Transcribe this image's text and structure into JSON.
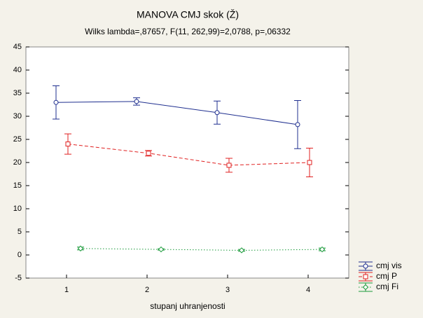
{
  "chart_data": {
    "type": "line",
    "title": "MANOVA CMJ skok (Ž)",
    "subtitle": "Wilks lambda=,87657, F(11, 262,99)=2,0788, p=,06332",
    "x_label": "stupanj uhranjenosti",
    "categories": [
      "1",
      "2",
      "3",
      "4"
    ],
    "series": [
      {
        "name": "cmj vis",
        "color": "#1f2f8f",
        "dash": "solid",
        "marker": "circle",
        "values": [
          33.0,
          33.2,
          30.8,
          28.2
        ],
        "errors": [
          3.6,
          0.8,
          2.5,
          5.2
        ]
      },
      {
        "name": "cmj P",
        "color": "#e02020",
        "dash": "dashed",
        "marker": "square",
        "values": [
          24.0,
          22.0,
          19.4,
          20.0
        ],
        "errors": [
          2.2,
          0.6,
          1.5,
          3.1
        ]
      },
      {
        "name": "cmj Fi",
        "color": "#1a9a3a",
        "dash": "dotted",
        "marker": "diamond",
        "values": [
          1.4,
          1.2,
          1.0,
          1.2
        ],
        "errors": [
          0.3,
          0.15,
          0.2,
          0.3
        ]
      }
    ],
    "ylim": [
      -5,
      45
    ],
    "yticks": [
      -5,
      0,
      5,
      10,
      15,
      20,
      25,
      30,
      35,
      40,
      45
    ],
    "legend": "bottom-right"
  }
}
